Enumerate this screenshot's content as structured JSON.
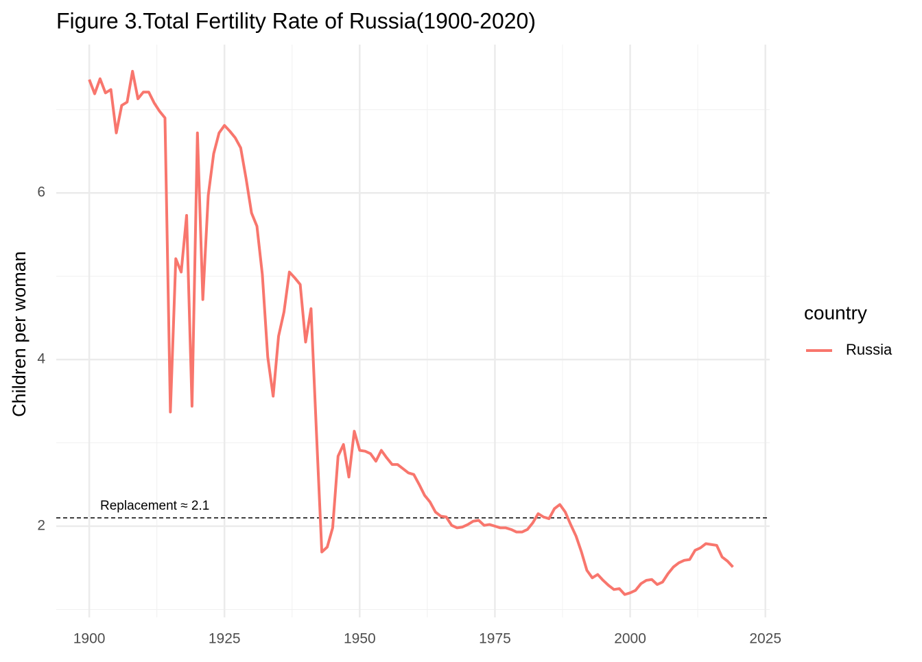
{
  "chart_data": {
    "type": "line",
    "title": "Figure 3.Total Fertility Rate of Russia(1900-2020)",
    "y_label": "Children per woman",
    "legend_title": "country",
    "x": [
      1900,
      1901,
      1902,
      1903,
      1904,
      1905,
      1906,
      1907,
      1908,
      1909,
      1910,
      1911,
      1912,
      1913,
      1914,
      1915,
      1916,
      1917,
      1918,
      1919,
      1920,
      1921,
      1922,
      1923,
      1924,
      1925,
      1926,
      1927,
      1928,
      1929,
      1930,
      1931,
      1932,
      1933,
      1934,
      1935,
      1936,
      1937,
      1938,
      1939,
      1940,
      1941,
      1942,
      1943,
      1944,
      1945,
      1946,
      1947,
      1948,
      1949,
      1950,
      1951,
      1952,
      1953,
      1954,
      1955,
      1956,
      1957,
      1958,
      1959,
      1960,
      1961,
      1962,
      1963,
      1964,
      1965,
      1966,
      1967,
      1968,
      1969,
      1970,
      1971,
      1972,
      1973,
      1974,
      1975,
      1976,
      1977,
      1978,
      1979,
      1980,
      1981,
      1982,
      1983,
      1984,
      1985,
      1986,
      1987,
      1988,
      1989,
      1990,
      1991,
      1992,
      1993,
      1994,
      1995,
      1996,
      1997,
      1998,
      1999,
      2000,
      2001,
      2002,
      2003,
      2004,
      2005,
      2006,
      2007,
      2008,
      2009,
      2010,
      2011,
      2012,
      2013,
      2014,
      2015,
      2016,
      2017,
      2018,
      2019
    ],
    "series": [
      {
        "name": "Russia",
        "color": "#F8766D",
        "values": [
          7.36,
          7.19,
          7.37,
          7.2,
          7.24,
          6.72,
          7.05,
          7.09,
          7.46,
          7.13,
          7.21,
          7.21,
          7.08,
          6.98,
          6.9,
          3.37,
          5.21,
          5.05,
          5.73,
          3.44,
          6.72,
          4.72,
          5.97,
          6.47,
          6.72,
          6.81,
          6.74,
          6.66,
          6.54,
          6.17,
          5.76,
          5.6,
          5.02,
          4.03,
          3.56,
          4.28,
          4.57,
          5.05,
          4.98,
          4.9,
          4.21,
          4.61,
          3.13,
          1.69,
          1.75,
          1.98,
          2.84,
          2.98,
          2.59,
          3.14,
          2.91,
          2.9,
          2.87,
          2.78,
          2.91,
          2.82,
          2.74,
          2.74,
          2.69,
          2.64,
          2.62,
          2.5,
          2.37,
          2.29,
          2.17,
          2.12,
          2.11,
          2.01,
          1.98,
          1.99,
          2.02,
          2.06,
          2.07,
          2.01,
          2.02,
          2.0,
          1.98,
          1.98,
          1.96,
          1.93,
          1.93,
          1.96,
          2.04,
          2.15,
          2.11,
          2.09,
          2.21,
          2.26,
          2.17,
          2.02,
          1.88,
          1.69,
          1.47,
          1.38,
          1.42,
          1.35,
          1.29,
          1.24,
          1.25,
          1.18,
          1.2,
          1.23,
          1.31,
          1.35,
          1.36,
          1.3,
          1.33,
          1.43,
          1.51,
          1.56,
          1.59,
          1.6,
          1.71,
          1.74,
          1.79,
          1.78,
          1.77,
          1.63,
          1.58,
          1.51
        ]
      }
    ],
    "hline": {
      "value": 2.1,
      "label": "Replacement ≈ 2.1"
    },
    "xlim": [
      1893.9,
      2025.8
    ],
    "xticks": [
      1900,
      1925,
      1950,
      1975,
      2000,
      2025
    ],
    "ylim": [
      0.905,
      7.78
    ],
    "yticks": [
      2,
      4,
      6
    ],
    "grid": true,
    "minor_grid": true,
    "legend": "right"
  }
}
